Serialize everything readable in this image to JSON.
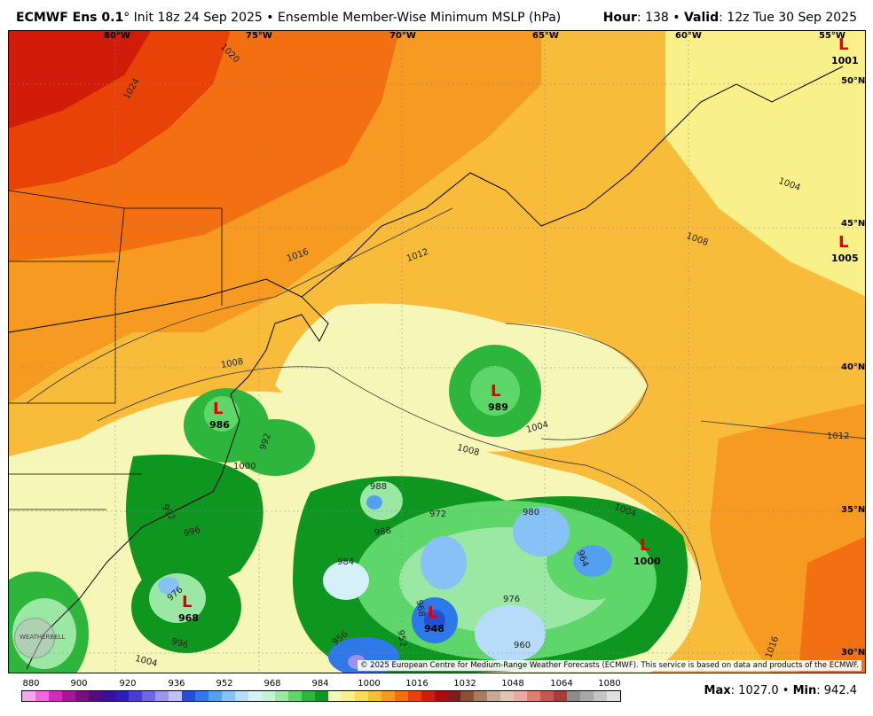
{
  "header": {
    "model": "ECMWF Ens 0.1",
    "degree": "°",
    "init": "Init 18z 24 Sep 2025",
    "sep": "•",
    "product": "Ensemble Member-Wise Minimum MSLP (hPa)",
    "hour_label": "Hour",
    "hour_value": ": 138",
    "valid_label": "Valid",
    "valid_value": ": 12z Tue 30 Sep 2025"
  },
  "map": {
    "lon_labels": [
      "80°W",
      "75°W",
      "70°W",
      "65°W",
      "60°W",
      "55°W"
    ],
    "lat_labels": [
      "50°N",
      "45°N",
      "40°N",
      "35°N",
      "30°N"
    ],
    "lows": [
      {
        "symbol": "L",
        "value": "1001"
      },
      {
        "symbol": "L",
        "value": "1005"
      },
      {
        "symbol": "L",
        "value": "989"
      },
      {
        "symbol": "L",
        "value": "986"
      },
      {
        "symbol": "L",
        "value": "1000"
      },
      {
        "symbol": "L",
        "value": "968"
      },
      {
        "symbol": "L",
        "value": "948"
      }
    ],
    "isobar_labels": [
      "1020",
      "1024",
      "1016",
      "1012",
      "1008",
      "1004",
      "1012",
      "1008",
      "1004",
      "1000",
      "996",
      "992",
      "988",
      "984",
      "980",
      "976",
      "972",
      "968",
      "964",
      "960",
      "956",
      "952",
      "1004",
      "1016",
      "1008",
      "992",
      "996",
      "988",
      "976",
      "1004"
    ],
    "copyright": "© 2025 European Centre for Medium-Range Weather Forecasts (ECMWF). This service is based on data and products of the ECMWF.",
    "logo_text": "WEATHERBELL"
  },
  "legend": {
    "ticks": [
      "880",
      "900",
      "920",
      "936",
      "952",
      "968",
      "984",
      "1000",
      "1016",
      "1032",
      "1048",
      "1064",
      "1080"
    ],
    "colors": [
      "#f4a6e6",
      "#ee68da",
      "#d42ac0",
      "#a6149a",
      "#7a1080",
      "#520e7c",
      "#3a109a",
      "#2c1cb8",
      "#4a3ed2",
      "#6e66e0",
      "#9a94ea",
      "#c2c0f2",
      "#2050d8",
      "#2e78e8",
      "#54a0f0",
      "#86c2f6",
      "#b6dcfa",
      "#d6f0f8",
      "#c8f0d6",
      "#9ae8a4",
      "#5ed66a",
      "#2eb63c",
      "#0e9620",
      "#f6f6b6",
      "#faf08a",
      "#f8da5c",
      "#f8bc3a",
      "#f69a22",
      "#f27012",
      "#e84208",
      "#d01c08",
      "#a80c0c",
      "#7c1e1e",
      "#8a5036",
      "#a87c62",
      "#c8a890",
      "#e2c4b4",
      "#eaaaa0",
      "#de8070",
      "#c85650",
      "#a83c3c",
      "#8c8c8c",
      "#a8a8a8",
      "#c4c4c4",
      "#e0e0e0"
    ],
    "max_label": "Max",
    "max_value": ": 1027.0",
    "bullet": "•",
    "min_label": "Min",
    "min_value": ": 942.4"
  }
}
